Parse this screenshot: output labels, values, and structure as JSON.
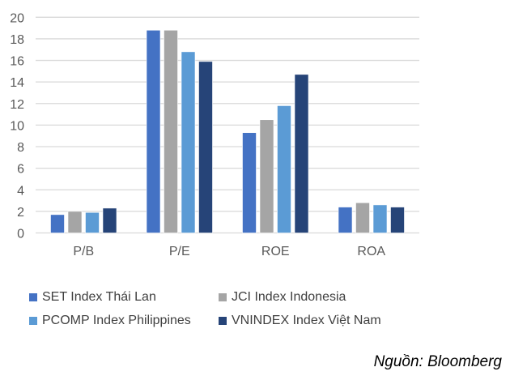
{
  "chart_data": {
    "type": "bar",
    "title": "",
    "xlabel": "",
    "ylabel": "",
    "categories": [
      "P/B",
      "P/E",
      "ROE",
      "ROA"
    ],
    "ylim": [
      0,
      20
    ],
    "yticks": [
      0,
      2,
      4,
      6,
      8,
      10,
      12,
      14,
      16,
      18,
      20
    ],
    "grid": true,
    "legend_position": "bottom",
    "series": [
      {
        "name": "SET Index Thái Lan",
        "color": "#4472C4",
        "values": [
          1.7,
          18.8,
          9.3,
          2.4
        ]
      },
      {
        "name": "JCI Index Indonesia",
        "color": "#A5A5A5",
        "values": [
          2.0,
          18.8,
          10.5,
          2.8
        ]
      },
      {
        "name": "PCOMP Index Philippines",
        "color": "#5B9BD5",
        "values": [
          1.9,
          16.8,
          11.8,
          2.6
        ]
      },
      {
        "name": "VNINDEX Index Việt Nam",
        "color": "#264478",
        "values": [
          2.3,
          15.9,
          14.7,
          2.4
        ]
      }
    ]
  },
  "source": "Nguồn: Bloomberg"
}
